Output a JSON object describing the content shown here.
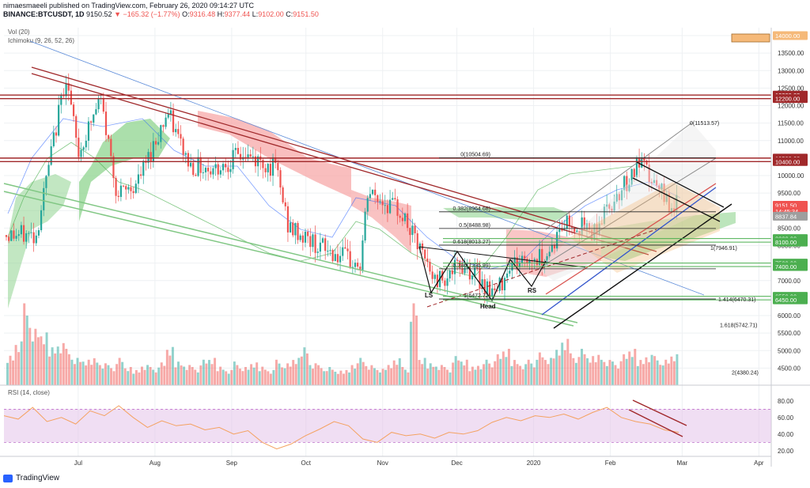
{
  "header": {
    "publisher": "nimaesmaeeli published on TradingView.com, February 26, 2020 09:14:27 UTC",
    "symbol": "BINANCE:BTCUSDT, 1D",
    "last": "9150.52",
    "change": "▼ −165.32 (−1.77%)",
    "o_label": "O:",
    "o": "9316.48",
    "h_label": "H:",
    "h": "9377.44",
    "l_label": "L:",
    "l": "9102.00",
    "c_label": "C:",
    "c": "9151.50"
  },
  "indicators": {
    "vol": "Vol (20)",
    "ichimoku": "Ichimoku (9, 26, 52, 26)",
    "rsi": "RSI (14, close)"
  },
  "brand": "TradingView",
  "colors": {
    "up": "#26a69a",
    "down": "#ef5350",
    "resistance": "#a0282a",
    "support_green": "#81c784",
    "trend_black": "#111111",
    "fib_orange": "#f5b979",
    "kumo_red": "#f7a8a8",
    "kumo_green": "#8fd48f",
    "rsi_line": "#f4a261",
    "rsi_band": "#e1bee7"
  },
  "chart_data": [
    {
      "type": "line",
      "title": "",
      "ylim": [
        4000,
        14200
      ],
      "x_ticks": [
        "Jul",
        "Aug",
        "Sep",
        "Oct",
        "Nov",
        "Dec",
        "2020",
        "Feb",
        "Mar",
        "Apr"
      ],
      "y_ticks": [
        4500,
        5000,
        5500,
        6000,
        6500,
        7000,
        7500,
        8000,
        8500,
        9000,
        9500,
        10000,
        10500,
        11000,
        11500,
        12000,
        12500,
        13000,
        13500,
        14000
      ],
      "series": [
        {
          "name": "",
          "x": [
            "2019-06-14",
            "2019-06-26",
            "2019-07-01",
            "2019-07-10",
            "2019-07-17",
            "2019-07-25",
            "2019-08-06",
            "2019-08-15",
            "2019-08-25",
            "2019-09-05",
            "2019-09-19",
            "2019-09-24",
            "2019-10-06",
            "2019-10-23",
            "2019-10-26",
            "2019-11-08",
            "2019-11-22",
            "2019-11-25",
            "2019-12-04",
            "2019-12-17",
            "2019-12-22",
            "2020-01-06",
            "2020-01-14",
            "2020-01-25",
            "2020-02-03",
            "2020-02-13",
            "2020-02-20",
            "2020-02-26"
          ],
          "values": [
            8300,
            12900,
            10600,
            12200,
            9400,
            9800,
            11800,
            10300,
            10200,
            10600,
            10200,
            8500,
            8000,
            7400,
            9500,
            9000,
            7000,
            7100,
            7450,
            6600,
            7500,
            7700,
            8700,
            8400,
            9400,
            10350,
            9600,
            9151
          ]
        }
      ],
      "price_tags": [
        "14000.00",
        "12300.00",
        "12200.00",
        "10500.00",
        "10400.00",
        "9151.50",
        "14:45:34",
        "8837.84",
        "8200.00",
        "8100.00",
        "7500.00",
        "7400.00",
        "6550.00",
        "6450.00"
      ],
      "horizontal_levels": [
        14000,
        12300,
        12200,
        10500,
        10400,
        8200,
        8100,
        7500,
        7400,
        6550,
        6450
      ],
      "fib_retracement": [
        {
          "label": "0(10504.69)",
          "price": 10504.69
        },
        {
          "label": "0.382(8964.68)",
          "price": 8964.68
        },
        {
          "label": "0.5(8488.98)",
          "price": 8488.98
        },
        {
          "label": "0.618(8013.27)",
          "price": 8013.27
        },
        {
          "label": "0.786(7335.99)",
          "price": 7335.99
        },
        {
          "label": "1(6472.72)",
          "price": 6472.72
        }
      ],
      "fib_extension": [
        {
          "label": "0(11513.57)",
          "price": 11513.57
        },
        {
          "label": "1(7946.91)",
          "price": 7946.91
        },
        {
          "label": "1.414(6470.31)",
          "price": 6470.31
        },
        {
          "label": "1.618(5742.71)",
          "price": 5742.71
        },
        {
          "label": "2(4380.24)",
          "price": 4380.24
        }
      ],
      "pattern_labels": [
        "LS",
        "Head",
        "RS"
      ]
    },
    {
      "type": "bar",
      "title": "",
      "ylim": [
        0,
        1
      ],
      "values_relative": [
        0.35,
        0.52,
        0.9,
        0.62,
        0.58,
        0.45,
        0.5,
        0.4,
        0.3,
        0.28,
        0.32,
        0.26,
        0.22,
        0.3,
        0.2,
        0.18,
        0.24,
        0.2,
        0.25,
        0.42,
        0.28,
        0.24,
        0.2,
        0.28,
        0.3,
        0.22,
        0.18,
        0.26,
        0.2,
        0.25,
        0.22,
        0.18,
        0.28,
        0.24,
        0.3,
        0.45,
        0.26,
        0.22,
        0.2,
        0.16,
        0.18,
        0.26,
        0.3,
        0.22,
        0.18,
        0.24,
        0.32,
        0.2,
        0.9,
        0.3,
        0.26,
        0.24,
        0.2,
        0.32,
        0.28,
        0.22,
        0.25,
        0.28,
        0.34,
        0.4,
        0.3,
        0.25,
        0.28,
        0.36,
        0.3,
        0.42,
        0.55,
        0.35,
        0.4,
        0.32,
        0.36,
        0.3,
        0.26,
        0.34,
        0.4,
        0.3,
        0.36,
        0.32,
        0.28,
        0.34
      ]
    },
    {
      "type": "line",
      "title": "",
      "ylim": [
        15,
        88
      ],
      "y_ticks": [
        20,
        40,
        60,
        80
      ],
      "bands": [
        30,
        70
      ],
      "values": [
        62,
        58,
        72,
        55,
        60,
        52,
        68,
        62,
        74,
        60,
        48,
        56,
        50,
        52,
        45,
        48,
        40,
        44,
        30,
        22,
        28,
        38,
        46,
        55,
        50,
        34,
        30,
        42,
        38,
        40,
        35,
        42,
        40,
        44,
        54,
        60,
        56,
        62,
        60,
        64,
        58,
        66,
        72,
        60,
        55,
        52,
        45,
        42
      ]
    }
  ]
}
